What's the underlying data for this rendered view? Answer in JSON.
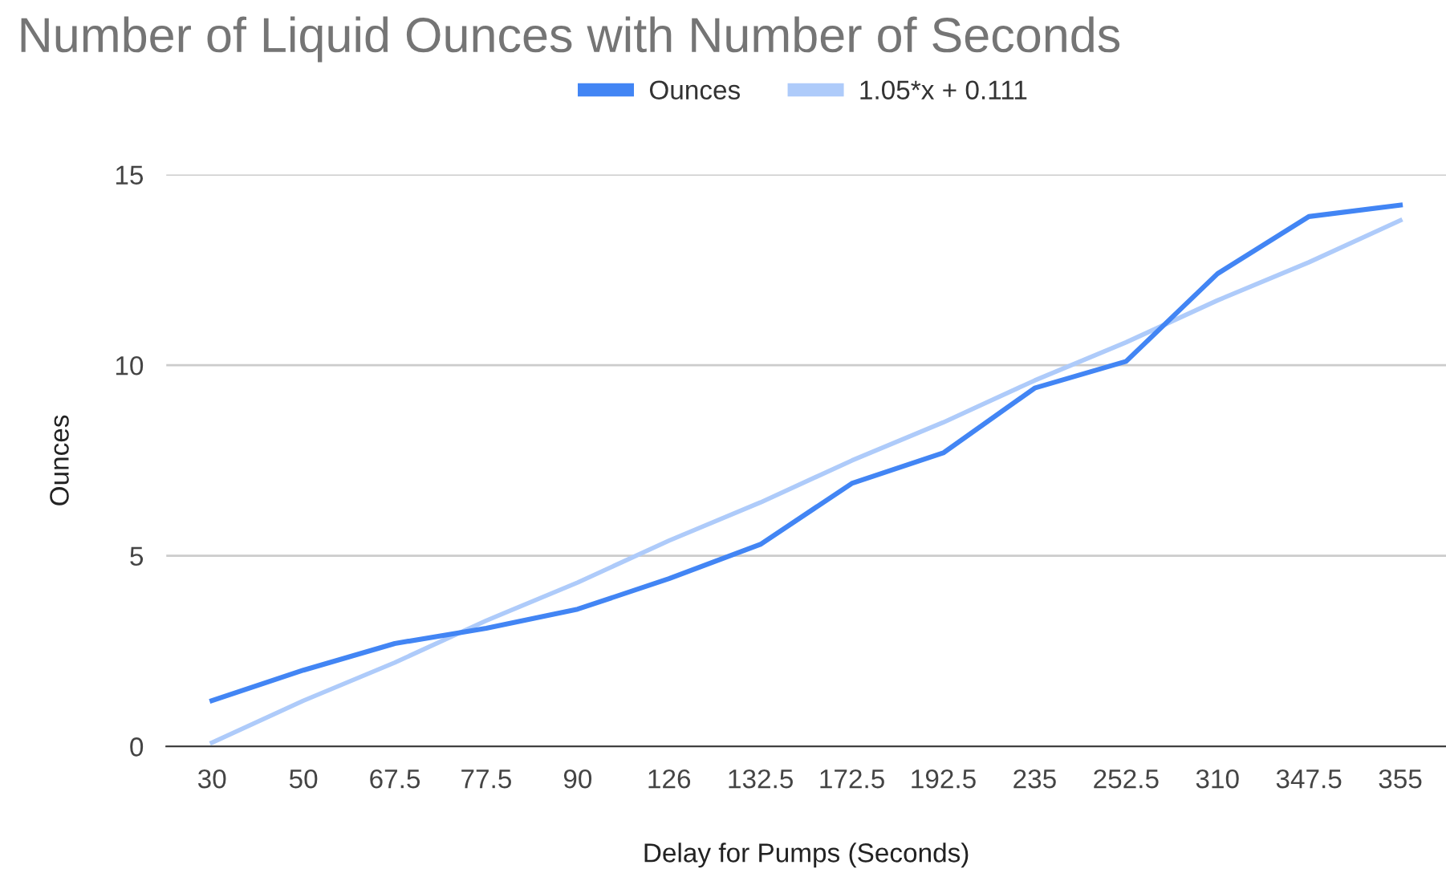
{
  "chart_data": {
    "type": "line",
    "title": "Number of Liquid Ounces with Number of Seconds",
    "xlabel": "Delay for Pumps (Seconds)",
    "ylabel": "Ounces",
    "categories": [
      "30",
      "50",
      "67.5",
      "77.5",
      "90",
      "126",
      "132.5",
      "172.5",
      "192.5",
      "235",
      "252.5",
      "310",
      "347.5",
      "355"
    ],
    "series": [
      {
        "name": "Ounces",
        "color": "#4285f4",
        "values": [
          1.2,
          2.0,
          2.7,
          3.1,
          3.6,
          4.4,
          5.3,
          6.9,
          7.7,
          9.4,
          10.1,
          12.4,
          13.9,
          14.2
        ]
      },
      {
        "name": "1.05*x + 0.111",
        "color": "#aecbfa",
        "values": [
          0.1,
          1.2,
          2.2,
          3.3,
          4.3,
          5.4,
          6.4,
          7.5,
          8.5,
          9.6,
          10.6,
          11.7,
          12.7,
          13.8
        ]
      }
    ],
    "ylim": [
      0,
      15
    ],
    "yticks": [
      0,
      5,
      10,
      15
    ],
    "grid": "y",
    "legend": "top",
    "marker": "none",
    "line_style": "solid"
  }
}
